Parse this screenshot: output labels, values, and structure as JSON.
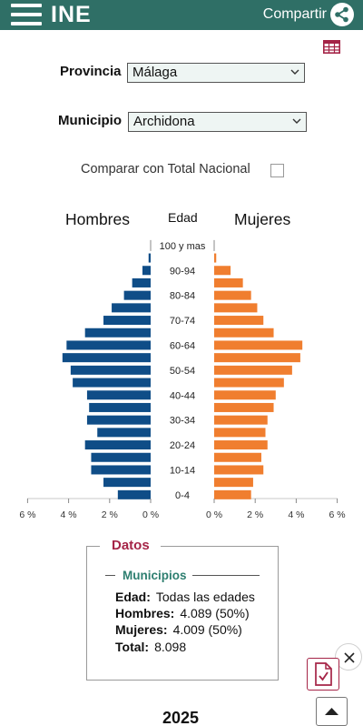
{
  "header": {
    "logo": "INE",
    "share_label": "Compartir",
    "brand_color": "#2f6f66"
  },
  "form": {
    "provincia_label": "Provincia",
    "provincia_value": "Málaga",
    "municipio_label": "Municipio",
    "municipio_value": "Archidona",
    "compare_label": "Comparar con Total Nacional",
    "compare_checked": false
  },
  "chart_data": {
    "type": "bar",
    "orientation": "horizontal-pyramid",
    "left_label": "Hombres",
    "center_label": "Edad",
    "right_label": "Mujeres",
    "categories": [
      "100 y mas",
      "95-99",
      "90-94",
      "85-89",
      "80-84",
      "75-79",
      "70-74",
      "65-69",
      "60-64",
      "55-59",
      "50-54",
      "45-49",
      "40-44",
      "35-39",
      "30-34",
      "25-29",
      "20-24",
      "15-19",
      "10-14",
      "5-9",
      "0-4"
    ],
    "tick_labels": [
      "100 y mas",
      "",
      "90-94",
      "",
      "80-84",
      "",
      "70-74",
      "",
      "60-64",
      "",
      "50-54",
      "",
      "40-44",
      "",
      "30-34",
      "",
      "20-24",
      "",
      "10-14",
      "",
      "0-4"
    ],
    "series": [
      {
        "name": "Hombres",
        "color": "#0f4d87",
        "values": [
          0.0,
          0.1,
          0.4,
          0.9,
          1.3,
          1.9,
          2.3,
          3.2,
          4.1,
          4.3,
          3.9,
          3.8,
          3.1,
          3.0,
          3.1,
          2.6,
          3.2,
          2.9,
          2.9,
          2.3,
          1.6
        ]
      },
      {
        "name": "Mujeres",
        "color": "#f07e2f",
        "values": [
          0.0,
          0.1,
          0.8,
          1.4,
          1.8,
          2.1,
          2.4,
          2.9,
          4.3,
          4.2,
          3.8,
          3.4,
          3.0,
          2.9,
          2.6,
          2.5,
          2.6,
          2.3,
          2.4,
          1.9,
          1.8
        ]
      }
    ],
    "x_ticks_left": [
      "6 %",
      "4 %",
      "2 %",
      "0 %"
    ],
    "x_ticks_right": [
      "0 %",
      "2 %",
      "4 %",
      "6 %"
    ],
    "xlim": [
      0,
      6
    ]
  },
  "datos": {
    "title": "Datos",
    "section": "Municipios",
    "edad_label": "Edad:",
    "edad_value": "Todas las edades",
    "hombres_label": "Hombres:",
    "hombres_value": "4.089 (50%)",
    "mujeres_label": "Mujeres:",
    "mujeres_value": "4.009 (50%)",
    "total_label": "Total:",
    "total_value": "8.098"
  },
  "footer": {
    "year": "2025"
  },
  "icons": [
    "menu-icon",
    "share-icon",
    "table-icon",
    "chevron-down-icon",
    "close-icon",
    "pdf-icon",
    "arrow-up-icon"
  ]
}
